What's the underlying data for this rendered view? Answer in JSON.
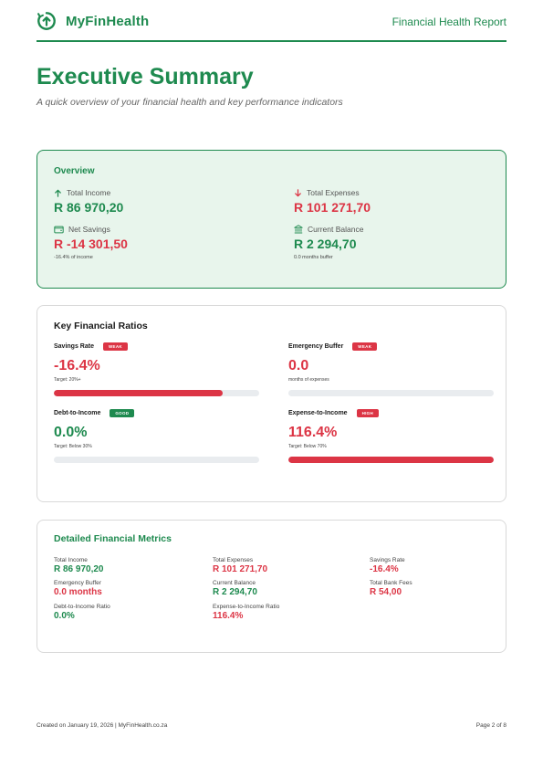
{
  "header": {
    "brand_name": "MyFinHealth",
    "report_title": "Financial Health Report"
  },
  "page": {
    "title": "Executive Summary",
    "subtitle": "A quick overview of your financial health and key performance indicators"
  },
  "overview": {
    "title": "Overview",
    "total_income": {
      "label": "Total Income",
      "value": "R 86 970,20",
      "icon": "arrow-up-icon"
    },
    "total_expenses": {
      "label": "Total Expenses",
      "value": "R 101 271,70",
      "icon": "arrow-down-icon"
    },
    "net_savings": {
      "label": "Net Savings",
      "value": "R -14 301,50",
      "note": "-16.4% of income",
      "icon": "wallet-icon"
    },
    "current_balance": {
      "label": "Current Balance",
      "value": "R 2 294,70",
      "note": "0.0 months buffer",
      "icon": "bank-icon"
    }
  },
  "ratios": {
    "title": "Key Financial Ratios",
    "savings_rate": {
      "name": "Savings Rate",
      "badge": "WEAK",
      "value": "-16.4%",
      "note": "Target: 20%+",
      "progress": 0.82
    },
    "emergency_buffer": {
      "name": "Emergency Buffer",
      "badge": "WEAK",
      "value": "0.0",
      "note": "months of expenses",
      "progress": 0.0
    },
    "debt_to_income": {
      "name": "Debt-to-Income",
      "badge": "GOOD",
      "value": "0.0%",
      "note": "Target: Below 30%",
      "progress": 0.0
    },
    "expense_to_income": {
      "name": "Expense-to-Income",
      "badge": "HIGH",
      "value": "116.4%",
      "note": "Target: Below 70%",
      "progress": 1.0
    }
  },
  "metrics": {
    "title": "Detailed Financial Metrics",
    "total_income": {
      "label": "Total Income",
      "value": "R 86 970,20"
    },
    "emergency_buffer": {
      "label": "Emergency Buffer",
      "value": "0.0 months"
    },
    "debt_to_income": {
      "label": "Debt-to-Income Ratio",
      "value": "0.0%"
    },
    "total_expenses": {
      "label": "Total Expenses",
      "value": "R 101 271,70"
    },
    "current_balance": {
      "label": "Current Balance",
      "value": "R 2 294,70"
    },
    "expense_to_income": {
      "label": "Expense-to-Income Ratio",
      "value": "116.4%"
    },
    "savings_rate": {
      "label": "Savings Rate",
      "value": "-16.4%"
    },
    "total_bank_fees": {
      "label": "Total Bank Fees",
      "value": "R 54,00"
    }
  },
  "footer": {
    "created": "Created on January 19, 2026 | MyFinHealth.co.za",
    "page": "Page 2 of 8"
  },
  "colors": {
    "brand_green": "#1e8a4f",
    "negative_red": "#dc3545",
    "overview_bg": "#e8f5ec",
    "track_gray": "#e9ecef"
  }
}
